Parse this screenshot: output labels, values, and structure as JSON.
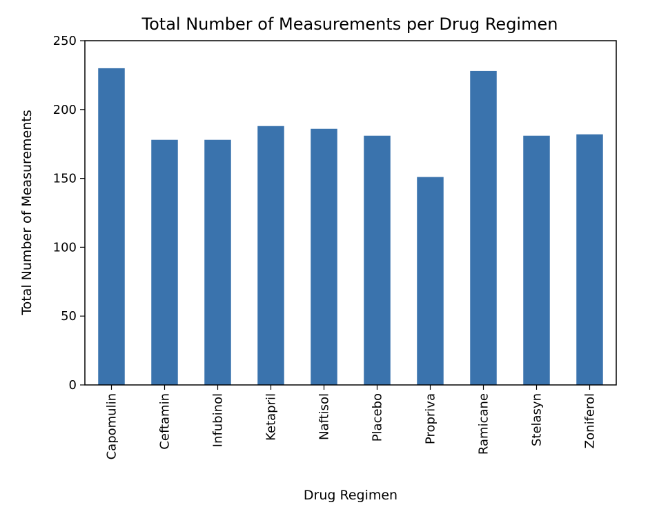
{
  "chart_data": {
    "type": "bar",
    "title": "Total Number of Measurements per Drug Regimen",
    "xlabel": "Drug Regimen",
    "ylabel": "Total Number of Measurements",
    "categories": [
      "Capomulin",
      "Ceftamin",
      "Infubinol",
      "Ketapril",
      "Naftisol",
      "Placebo",
      "Propriva",
      "Ramicane",
      "Stelasyn",
      "Zoniferol"
    ],
    "values": [
      230,
      178,
      178,
      188,
      186,
      181,
      151,
      228,
      181,
      182
    ],
    "ylim": [
      0,
      250
    ],
    "yticks": [
      0,
      50,
      100,
      150,
      200,
      250
    ],
    "grid": false,
    "bar_color": "#3a73ad",
    "axis_color": "#000000"
  }
}
